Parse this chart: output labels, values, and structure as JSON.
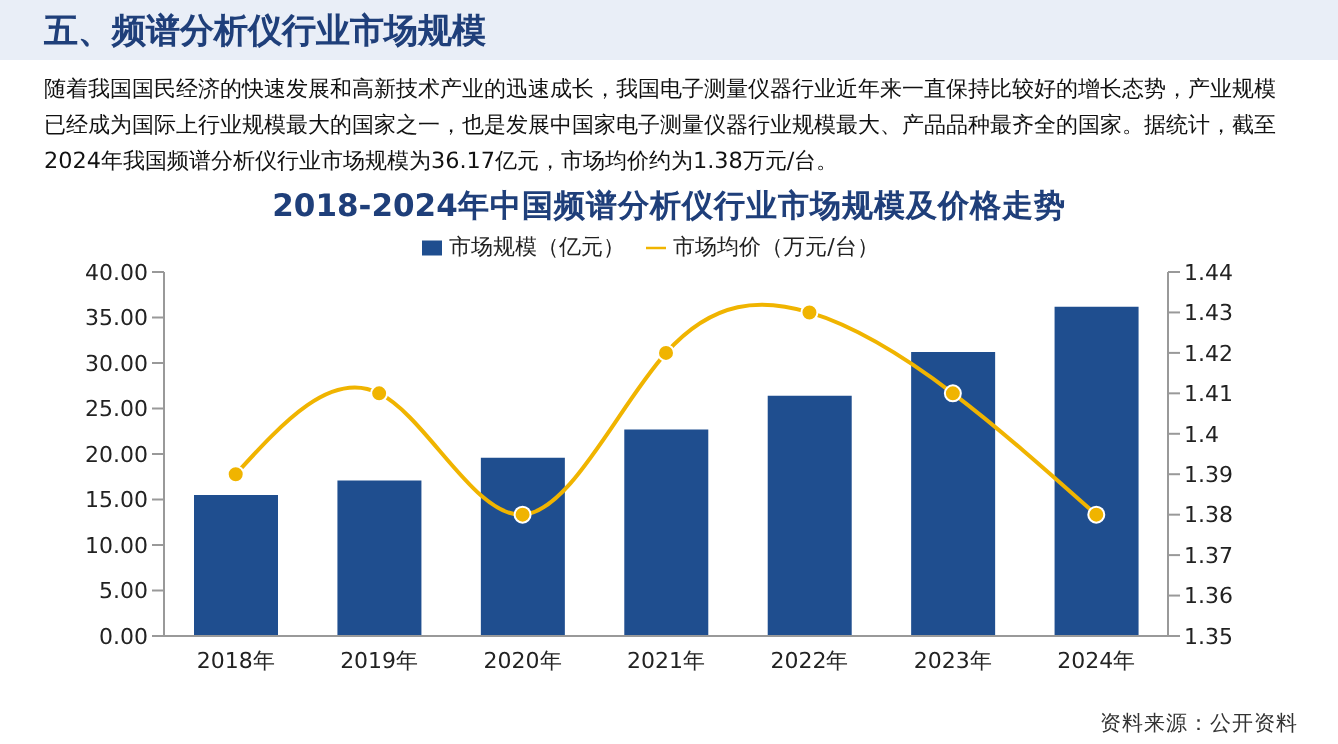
{
  "chart_data": {
    "type": "bar",
    "title": "2018-2024年中国频谱分析仪行业市场规模及价格走势",
    "subtitle": "随着我国国民经济的快速发展和高新技术产业的迅速成长，我国电子测量仪器行业近年来一直保持比较好的增长态势，产业规模已经成为国际上行业规模最大的国家之一，也是发展中国家电子测量仪器行业规模最大、产品品种最齐全的国家。据统计，截至2024年我国频谱分析仪行业市场规模为36.17亿元，市场均价约为1.38万元/台。",
    "annotations": [
      "五、频谱分析仪行业市场规模",
      "资料来源：公开资料"
    ],
    "categories": [
      "2018年",
      "2019年",
      "2020年",
      "2021年",
      "2022年",
      "2023年",
      "2024年"
    ],
    "series": [
      {
        "name": "市场规模（亿元）",
        "color": "#1f4e8f",
        "values": [
          15.5,
          17.1,
          19.6,
          22.7,
          26.4,
          31.2,
          36.17
        ]
      },
      {
        "name": "市场均价（万元/台）",
        "type": "line",
        "axis": "y2",
        "color": "#f0b400",
        "marker": "circle",
        "values": [
          1.39,
          1.41,
          1.38,
          1.42,
          1.43,
          1.41,
          1.38
        ]
      }
    ],
    "ylim": [
      0,
      40
    ],
    "yticks": [
      {
        "value": 0,
        "label": "0.00"
      },
      {
        "value": 5,
        "label": "5.00"
      },
      {
        "value": 10,
        "label": "10.00"
      },
      {
        "value": 15,
        "label": "15.00"
      },
      {
        "value": 20,
        "label": "20.00"
      },
      {
        "value": 25,
        "label": "25.00"
      },
      {
        "value": 30,
        "label": "30.00"
      },
      {
        "value": 35,
        "label": "35.00"
      },
      {
        "value": 40,
        "label": "40.00"
      }
    ],
    "y2lim": [
      1.35,
      1.44
    ],
    "y2ticks": [
      1.35,
      1.36,
      1.37,
      1.38,
      1.39,
      1.4,
      1.41,
      1.42,
      1.43,
      1.44
    ],
    "legend": "top",
    "grid": false
  }
}
